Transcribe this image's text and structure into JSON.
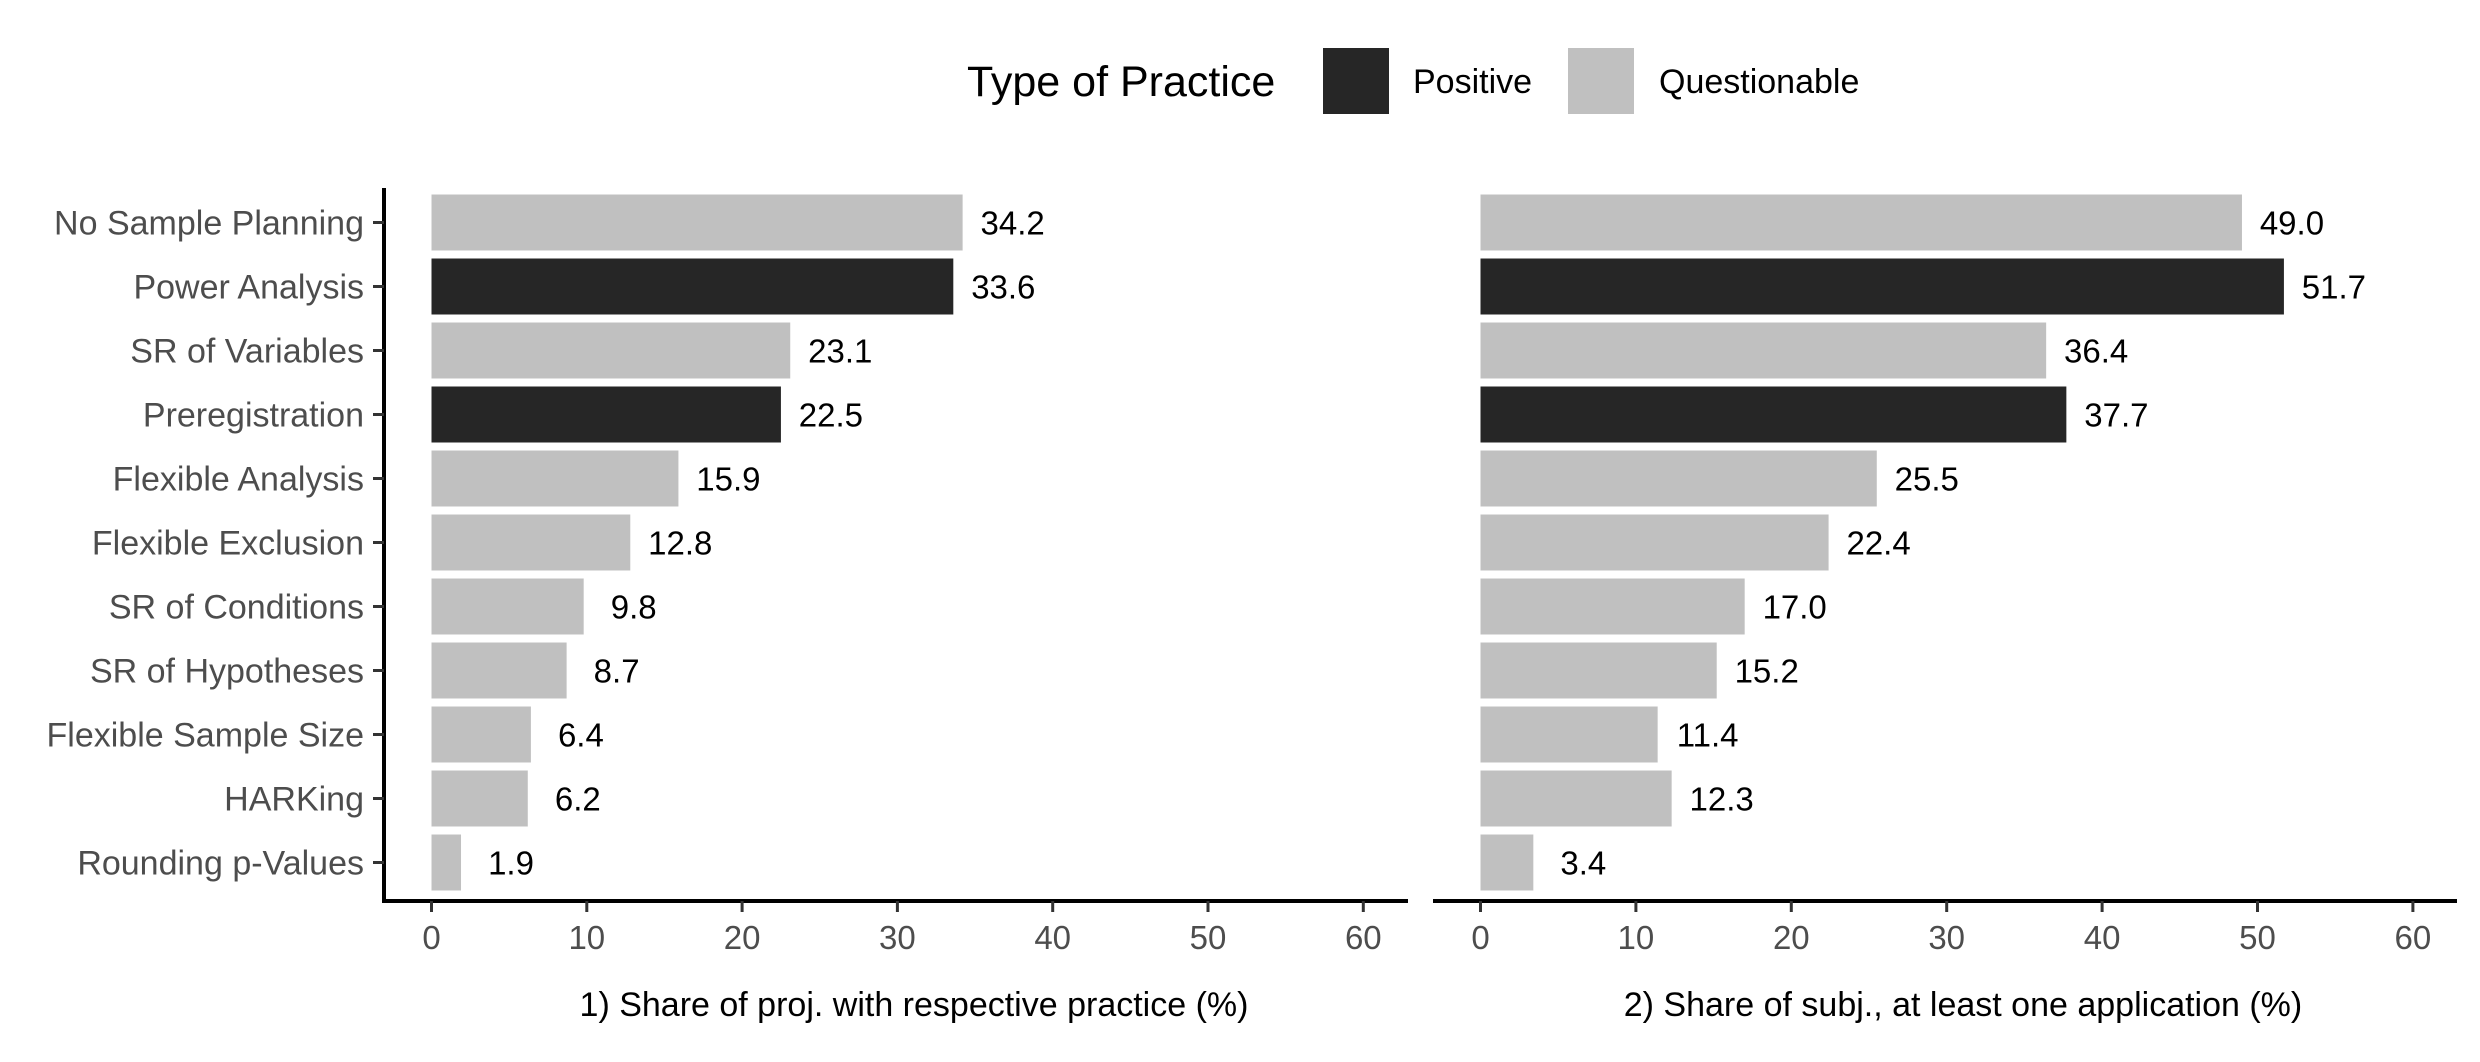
{
  "chart_data": [
    {
      "type": "bar",
      "orientation": "horizontal",
      "categories": [
        "No Sample Planning",
        "Power Analysis",
        "SR of Variables",
        "Preregistration",
        "Flexible Analysis",
        "Flexible Exclusion",
        "SR of Conditions",
        "SR of Hypotheses",
        "Flexible Sample Size",
        "HARKing",
        "Rounding p-Values"
      ],
      "values": [
        34.2,
        33.6,
        23.1,
        22.5,
        15.9,
        12.8,
        9.8,
        8.7,
        6.4,
        6.2,
        1.9
      ],
      "value_labels": [
        "34.2",
        "33.6",
        "23.1",
        "22.5",
        "15.9",
        "12.8",
        "9.8",
        "8.7",
        "6.4",
        "6.2",
        "1.9"
      ],
      "practice_type": [
        "Questionable",
        "Positive",
        "Questionable",
        "Positive",
        "Questionable",
        "Questionable",
        "Questionable",
        "Questionable",
        "Questionable",
        "Questionable",
        "Questionable"
      ],
      "xlabel": "1) Share of proj. with respective practice (%)",
      "xlim": [
        0,
        60
      ],
      "xticks": [
        "0",
        "10",
        "20",
        "30",
        "40",
        "50",
        "60"
      ],
      "grid": false
    },
    {
      "type": "bar",
      "orientation": "horizontal",
      "categories": [
        "No Sample Planning",
        "Power Analysis",
        "SR of Variables",
        "Preregistration",
        "Flexible Analysis",
        "Flexible Exclusion",
        "SR of Conditions",
        "SR of Hypotheses",
        "Flexible Sample Size",
        "HARKing",
        "Rounding p-Values"
      ],
      "values": [
        49.0,
        51.7,
        36.4,
        37.7,
        25.5,
        22.4,
        17.0,
        15.2,
        11.4,
        12.3,
        3.4
      ],
      "value_labels": [
        "49.0",
        "51.7",
        "36.4",
        "37.7",
        "25.5",
        "22.4",
        "17.0",
        "15.2",
        "11.4",
        "12.3",
        "3.4"
      ],
      "practice_type": [
        "Questionable",
        "Positive",
        "Questionable",
        "Positive",
        "Questionable",
        "Questionable",
        "Questionable",
        "Questionable",
        "Questionable",
        "Questionable",
        "Questionable"
      ],
      "xlabel": "2) Share of subj., at least one application (%)",
      "xlim": [
        0,
        60
      ],
      "xticks": [
        "0",
        "10",
        "20",
        "30",
        "40",
        "50",
        "60"
      ],
      "grid": false
    }
  ],
  "legend": {
    "title": "Type of Practice",
    "placement": "top-center",
    "entries": [
      {
        "label": "Positive",
        "color": "#262626"
      },
      {
        "label": "Questionable",
        "color": "#c0c0c0"
      }
    ]
  },
  "colors": {
    "Positive": "#262626",
    "Questionable": "#c0c0c0"
  }
}
